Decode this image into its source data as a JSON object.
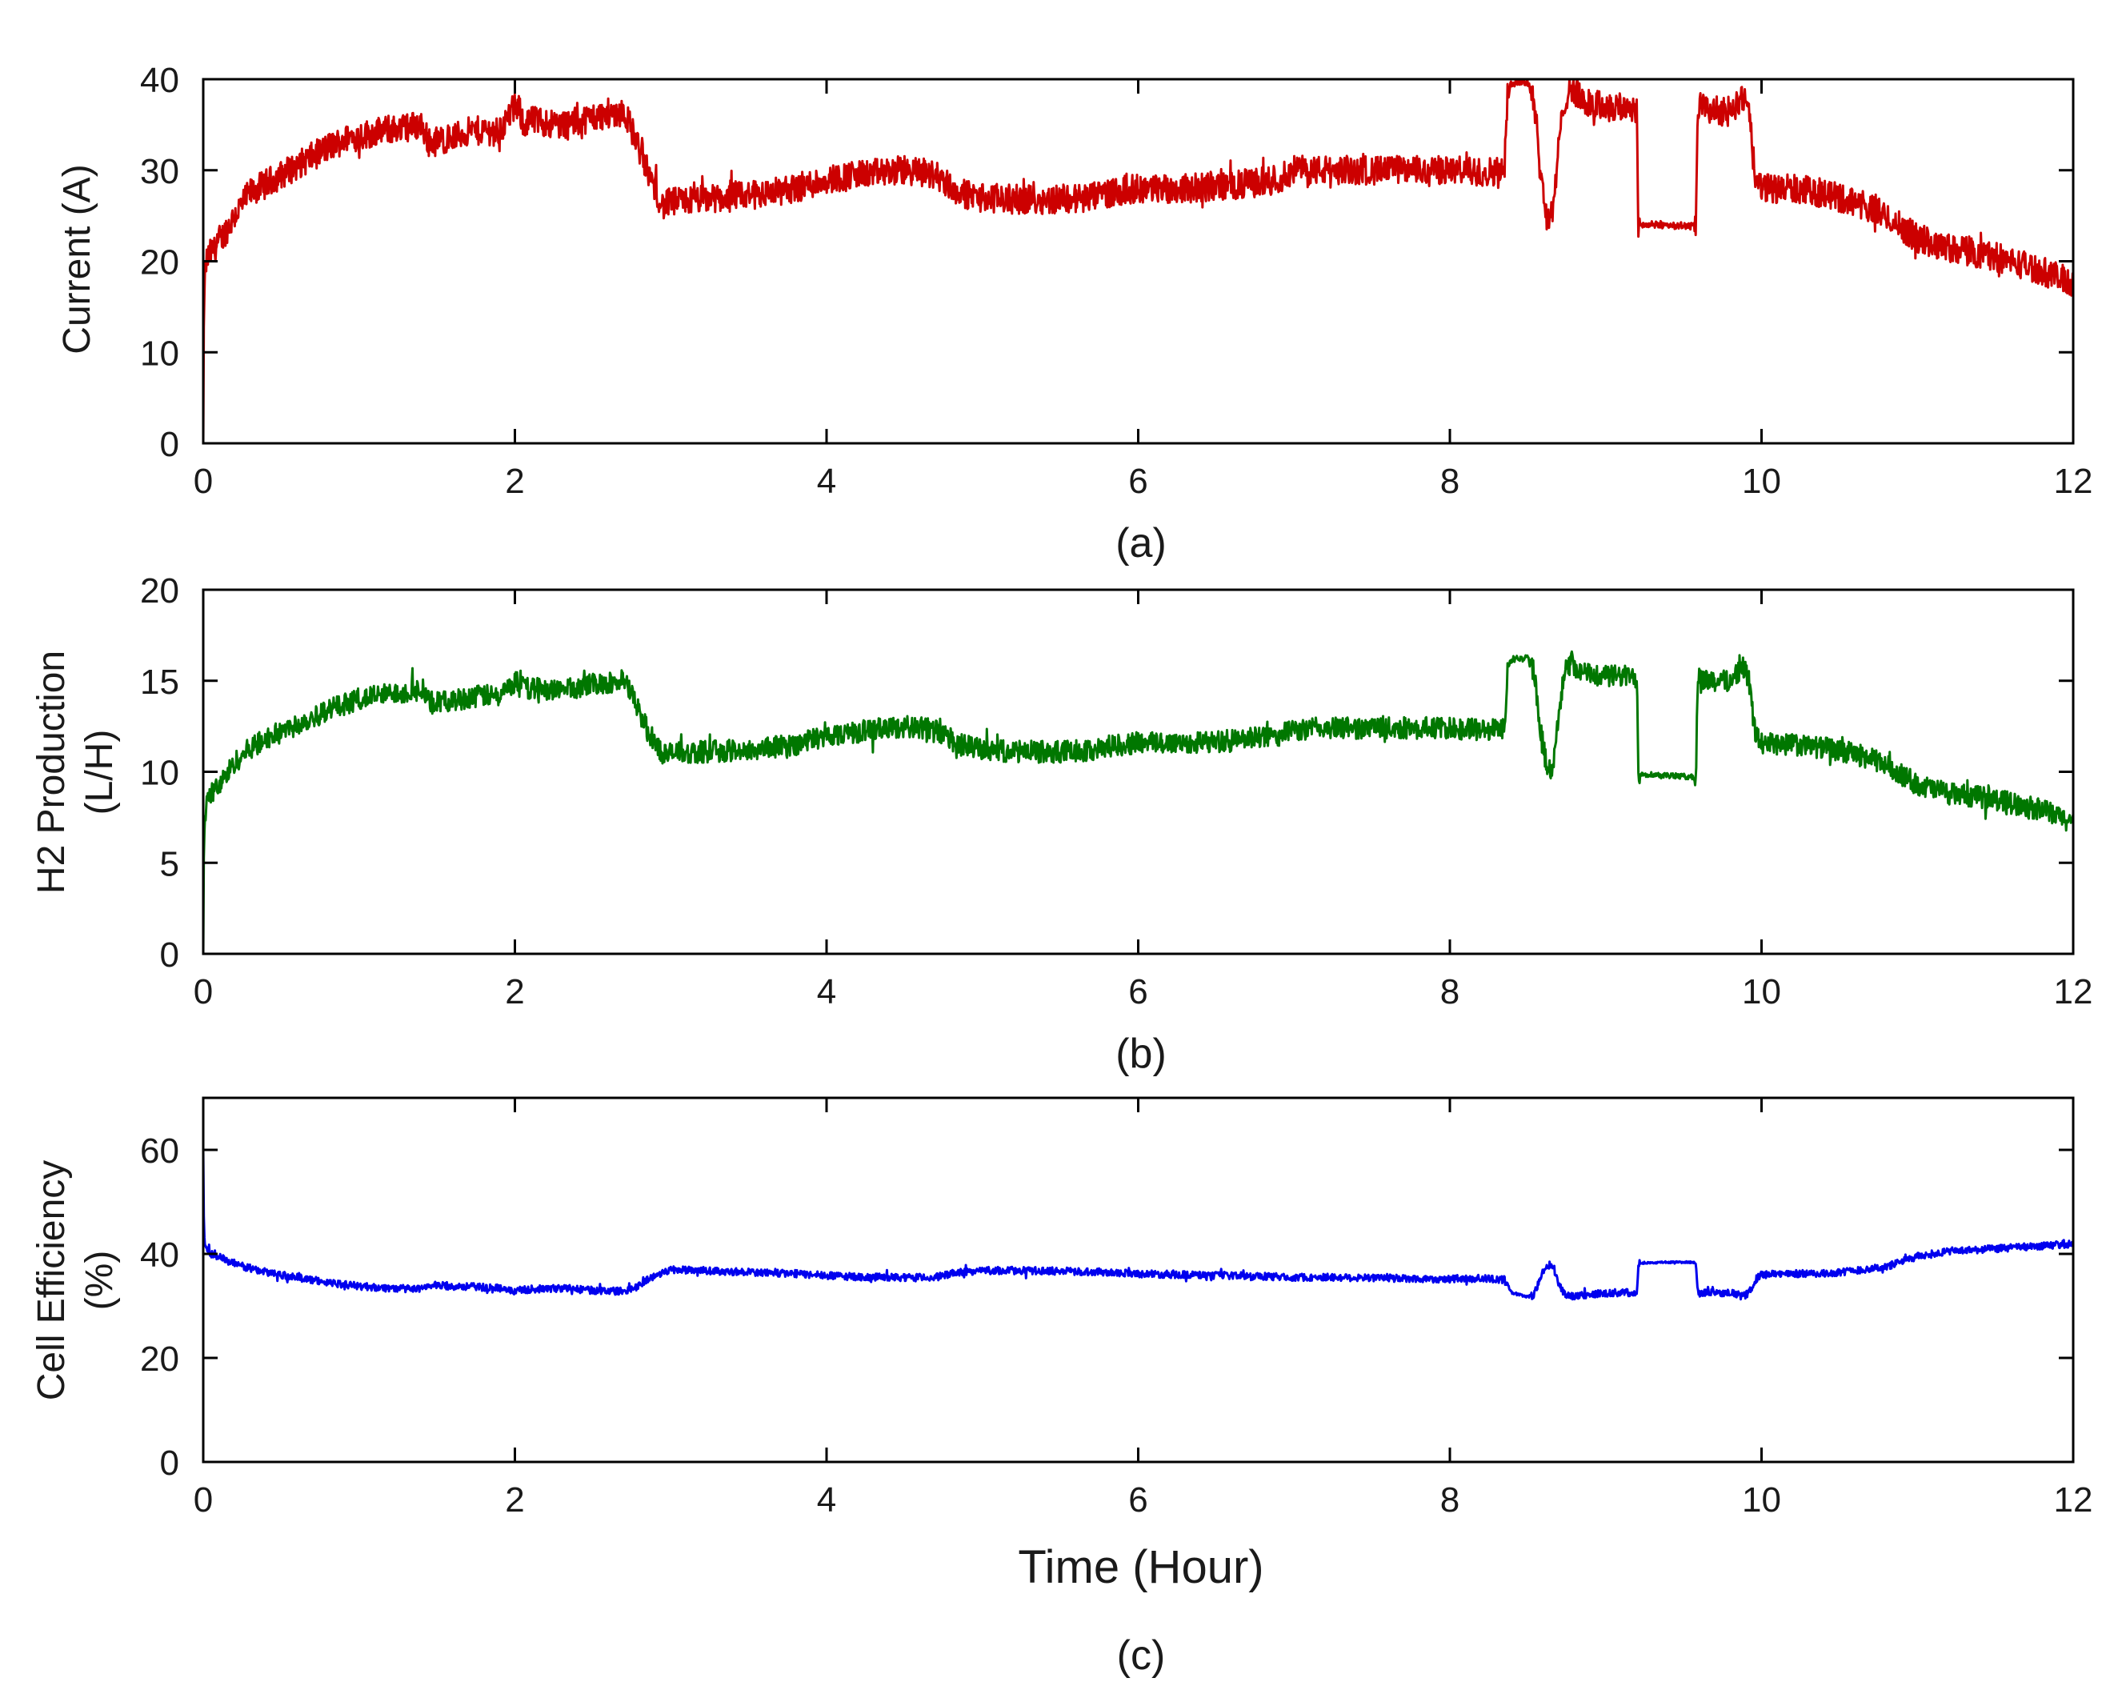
{
  "chart_data": [
    {
      "type": "line",
      "panel": "a",
      "caption": "(a)",
      "xlabel": "",
      "ylabel": "Current (A)",
      "xlim": [
        0,
        12
      ],
      "ylim": [
        0,
        40
      ],
      "xticks": [
        0,
        2,
        4,
        6,
        8,
        10,
        12
      ],
      "yticks": [
        0,
        10,
        20,
        30,
        40
      ],
      "xtick_labels": [
        "0",
        "2",
        "4",
        "6",
        "8",
        "10",
        "12"
      ],
      "ytick_labels": [
        "0",
        "10",
        "20",
        "30",
        "40"
      ],
      "series": [
        {
          "name": "Current",
          "color": "#cc0000",
          "noise": 1.6,
          "x": [
            0,
            0.005,
            0.02,
            0.05,
            0.1,
            0.2,
            0.3,
            0.4,
            0.5,
            0.6,
            0.7,
            0.8,
            0.9,
            1.0,
            1.2,
            1.4,
            1.45,
            1.5,
            1.6,
            1.7,
            1.8,
            1.9,
            1.98,
            2.02,
            2.06,
            2.1,
            2.3,
            2.5,
            2.7,
            2.75,
            2.85,
            2.95,
            3.0,
            3.2,
            3.5,
            3.8,
            4.0,
            4.2,
            4.5,
            4.7,
            4.85,
            5.0,
            5.2,
            5.5,
            5.7,
            5.8,
            6.0,
            6.3,
            6.6,
            6.9,
            7.0,
            7.2,
            7.5,
            7.8,
            8.0,
            8.2,
            8.35,
            8.37,
            8.4,
            8.5,
            8.54,
            8.58,
            8.62,
            8.66,
            8.7,
            8.74,
            8.78,
            8.85,
            9.0,
            9.2,
            9.21,
            9.4,
            9.58,
            9.59,
            9.7,
            9.8,
            9.88,
            9.92,
            9.96,
            10.0,
            10.2,
            10.4,
            10.6,
            10.8,
            11.0,
            11.2,
            11.5,
            11.8,
            12.0
          ],
          "values": [
            0,
            17,
            20,
            21,
            22,
            25,
            27.5,
            28.5,
            29.5,
            30.5,
            31.5,
            32.5,
            33.3,
            33.8,
            34.5,
            35,
            33,
            33.2,
            33.6,
            34.2,
            34.4,
            34.2,
            36.5,
            37,
            35,
            35.5,
            35,
            35.8,
            36.5,
            34.5,
            30,
            26,
            26.5,
            26.8,
            27.2,
            28,
            29,
            29.5,
            30,
            29.5,
            27.5,
            27,
            26.8,
            26.8,
            27,
            27.5,
            28,
            28,
            28.3,
            29,
            30,
            30,
            30,
            30,
            30,
            29.8,
            30,
            38,
            39.8,
            39.7,
            38,
            30,
            25,
            25,
            33,
            38,
            39.2,
            37.5,
            37,
            36.8,
            24,
            24,
            23.8,
            37,
            36.5,
            36.5,
            38,
            36,
            29,
            28,
            28,
            27.5,
            26.5,
            25,
            22.5,
            21.5,
            20.5,
            19,
            17.5
          ]
        }
      ]
    },
    {
      "type": "line",
      "panel": "b",
      "caption": "(b)",
      "xlabel": "",
      "ylabel": "H2 Production (L/H)",
      "ylabel_lines": [
        "H2 Production",
        "(L/H)"
      ],
      "xlim": [
        0,
        12
      ],
      "ylim": [
        0,
        20
      ],
      "xticks": [
        0,
        2,
        4,
        6,
        8,
        10,
        12
      ],
      "yticks": [
        0,
        5,
        10,
        15,
        20
      ],
      "xtick_labels": [
        "0",
        "2",
        "4",
        "6",
        "8",
        "10",
        "12"
      ],
      "ytick_labels": [
        "0",
        "5",
        "10",
        "15",
        "20"
      ],
      "series": [
        {
          "name": "H2 Production",
          "color": "#007700",
          "noise": 0.6,
          "x": [
            0,
            0.005,
            0.02,
            0.05,
            0.1,
            0.2,
            0.3,
            0.4,
            0.5,
            0.6,
            0.7,
            0.8,
            0.9,
            1.0,
            1.2,
            1.4,
            1.45,
            1.5,
            1.6,
            1.7,
            1.8,
            1.9,
            1.98,
            2.02,
            2.06,
            2.1,
            2.3,
            2.5,
            2.7,
            2.75,
            2.85,
            2.95,
            3.0,
            3.2,
            3.5,
            3.8,
            4.0,
            4.2,
            4.5,
            4.7,
            4.85,
            5.0,
            5.2,
            5.5,
            5.7,
            5.8,
            6.0,
            6.3,
            6.6,
            6.9,
            7.0,
            7.2,
            7.5,
            7.8,
            8.0,
            8.2,
            8.35,
            8.37,
            8.4,
            8.5,
            8.54,
            8.58,
            8.62,
            8.66,
            8.7,
            8.74,
            8.78,
            8.85,
            9.0,
            9.2,
            9.21,
            9.4,
            9.58,
            9.59,
            9.7,
            9.8,
            9.88,
            9.92,
            9.96,
            10.0,
            10.2,
            10.4,
            10.6,
            10.8,
            11.0,
            11.2,
            11.5,
            11.8,
            12.0
          ],
          "values": [
            0,
            7,
            8.2,
            8.8,
            9.2,
            10.5,
            11.3,
            11.8,
            12.2,
            12.6,
            13,
            13.4,
            13.7,
            14,
            14.3,
            14.5,
            13.8,
            13.8,
            13.9,
            14.1,
            14.2,
            14.1,
            14.8,
            15,
            14.6,
            14.6,
            14.5,
            14.8,
            15,
            14.2,
            12.3,
            11,
            11,
            11.1,
            11.2,
            11.5,
            12,
            12.2,
            12.5,
            12.3,
            11.5,
            11.2,
            11.1,
            11.1,
            11.2,
            11.4,
            11.6,
            11.6,
            11.7,
            12,
            12.3,
            12.4,
            12.4,
            12.4,
            12.4,
            12.3,
            12.4,
            15.8,
            16.2,
            16.2,
            15.5,
            12.5,
            10.3,
            10.2,
            13.5,
            15.5,
            16,
            15.4,
            15.3,
            15.2,
            9.9,
            9.8,
            9.7,
            15.2,
            15,
            15,
            15.8,
            15,
            12,
            11.6,
            11.5,
            11.3,
            11,
            10.4,
            9.3,
            8.8,
            8.5,
            7.9,
            7.2
          ]
        }
      ]
    },
    {
      "type": "line",
      "panel": "c",
      "caption": "(c)",
      "xlabel": "Time (Hour)",
      "ylabel": "Cell Efficiency (%)",
      "ylabel_lines": [
        "Cell Efficiency",
        "(%)"
      ],
      "xlim": [
        0,
        12
      ],
      "ylim": [
        0,
        70
      ],
      "xticks": [
        0,
        2,
        4,
        6,
        8,
        10,
        12
      ],
      "yticks": [
        0,
        20,
        40,
        60
      ],
      "xtick_labels": [
        "0",
        "2",
        "4",
        "6",
        "8",
        "10",
        "12"
      ],
      "ytick_labels": [
        "0",
        "20",
        "40",
        "60"
      ],
      "series": [
        {
          "name": "Cell Efficiency",
          "color": "#0000ee",
          "noise": 0.7,
          "x": [
            0,
            0.005,
            0.02,
            0.05,
            0.1,
            0.2,
            0.4,
            0.6,
            0.8,
            1.0,
            1.2,
            1.4,
            1.45,
            1.6,
            1.9,
            1.98,
            2.02,
            2.1,
            2.3,
            2.5,
            2.7,
            2.75,
            2.85,
            2.95,
            3.0,
            3.2,
            3.5,
            3.8,
            4.0,
            4.2,
            4.5,
            4.7,
            4.85,
            5.0,
            5.2,
            5.5,
            5.8,
            6.0,
            6.3,
            6.6,
            6.9,
            7.0,
            7.2,
            7.5,
            7.8,
            8.0,
            8.2,
            8.35,
            8.4,
            8.5,
            8.54,
            8.58,
            8.62,
            8.66,
            8.7,
            8.74,
            8.78,
            8.85,
            9.0,
            9.2,
            9.21,
            9.4,
            9.58,
            9.59,
            9.7,
            9.8,
            9.88,
            9.92,
            9.96,
            10.0,
            10.2,
            10.4,
            10.6,
            10.8,
            11.0,
            11.2,
            11.5,
            11.8,
            12.0
          ],
          "values": [
            60,
            43,
            41,
            40,
            39.5,
            38,
            36.5,
            35.5,
            34.5,
            33.8,
            33.4,
            33.2,
            34,
            33.8,
            33.5,
            32.8,
            33,
            33.2,
            33.4,
            33,
            32.8,
            33.2,
            35,
            36.5,
            37,
            36.8,
            36.5,
            36.2,
            35.8,
            35.6,
            35.4,
            35.5,
            36.5,
            36.8,
            36.8,
            36.7,
            36.5,
            36.2,
            36,
            35.8,
            35.6,
            35.5,
            35.5,
            35.4,
            35.2,
            35.2,
            35.3,
            35,
            32.5,
            31.8,
            32,
            35.5,
            37.8,
            37.8,
            34,
            32,
            31.8,
            32,
            32.5,
            32.6,
            38.2,
            38.4,
            38.4,
            32.5,
            32.5,
            32.6,
            31.8,
            32.5,
            35,
            36,
            36.2,
            36.2,
            36.8,
            37.5,
            39.5,
            40.5,
            41,
            41.5,
            42
          ]
        }
      ]
    }
  ]
}
